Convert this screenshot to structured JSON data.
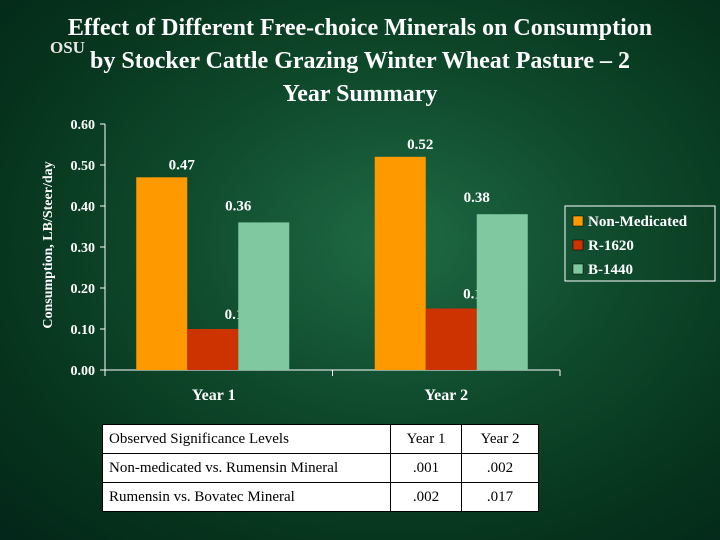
{
  "logo_text": "OSU",
  "chart_data": {
    "type": "bar",
    "title_lines": [
      "Effect of Different Free-choice Minerals on Consumption",
      "by Stocker Cattle Grazing Winter Wheat Pasture – 2",
      "Year Summary"
    ],
    "xlabel": "",
    "ylabel": "Consumption, LB/Steer/day",
    "ylim": [
      0,
      0.6
    ],
    "yticks": [
      "0.00",
      "0.10",
      "0.20",
      "0.30",
      "0.40",
      "0.50",
      "0.60"
    ],
    "categories": [
      "Year 1",
      "Year 2"
    ],
    "series": [
      {
        "name": "Non-Medicated",
        "values": [
          0.47,
          0.52
        ],
        "labels": [
          "0.47",
          "0.52"
        ],
        "color": "#ff9900"
      },
      {
        "name": "R-1620",
        "values": [
          0.1,
          0.15
        ],
        "labels": [
          "0.10",
          "0.15"
        ],
        "color": "#cc3300"
      },
      {
        "name": "B-1440",
        "values": [
          0.36,
          0.38
        ],
        "labels": [
          "0.36",
          "0.38"
        ],
        "color": "#7fc8a0"
      }
    ],
    "legend_position": "right",
    "grid": false
  },
  "significance_table": {
    "header": [
      "Observed Significance Levels",
      "Year 1",
      "Year 2"
    ],
    "rows": [
      [
        "Non-medicated vs. Rumensin Mineral",
        ".001",
        ".002"
      ],
      [
        "Rumensin vs. Bovatec Mineral",
        ".002",
        ".017"
      ]
    ]
  }
}
